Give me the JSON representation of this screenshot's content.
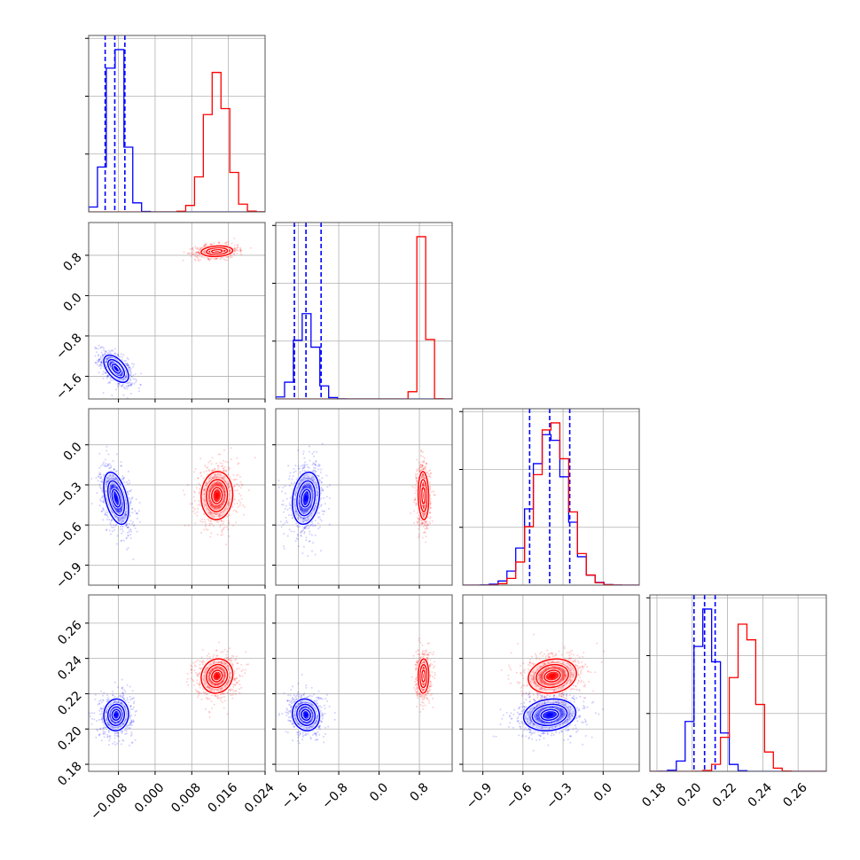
{
  "chart_data": {
    "type": "scatter",
    "subtype": "corner-plot",
    "grid": true,
    "colors": {
      "series_a": "#0000ff",
      "series_b": "#ff0000"
    },
    "parameters": [
      {
        "range": [
          -0.0145,
          0.024
        ],
        "ticks": [
          -0.008,
          0.0,
          0.008,
          0.016,
          0.024
        ],
        "tick_labels": [
          "−0.008",
          "0.000",
          "0.008",
          "0.016",
          "0.024"
        ]
      },
      {
        "range": [
          -2.05,
          1.45
        ],
        "ticks": [
          -1.6,
          -0.8,
          0.0,
          0.8
        ],
        "tick_labels": [
          "−1.6",
          "−0.8",
          "0.0",
          "0.8"
        ]
      },
      {
        "range": [
          -1.05,
          0.27
        ],
        "ticks": [
          -0.9,
          -0.6,
          -0.3,
          0.0
        ],
        "tick_labels": [
          "−0.9",
          "−0.6",
          "−0.3",
          "0.0"
        ]
      },
      {
        "range": [
          0.176,
          0.276
        ],
        "ticks": [
          0.18,
          0.2,
          0.22,
          0.24,
          0.26
        ],
        "tick_labels": [
          "0.18",
          "0.20",
          "0.22",
          "0.24",
          "0.26"
        ]
      }
    ],
    "series": [
      {
        "color": "#0000ff",
        "mean": [
          -0.0085,
          -1.45,
          -0.4,
          0.208
        ],
        "sd": [
          0.0018,
          0.18,
          0.13,
          0.006
        ],
        "correlation": [
          [
            1,
            -0.55,
            -0.45,
            0.05
          ],
          [
            -0.55,
            1,
            0.2,
            -0.1
          ],
          [
            -0.45,
            0.2,
            1,
            0.15
          ],
          [
            0.05,
            -0.1,
            0.15,
            1
          ]
        ],
        "quantiles_16_50_84": [
          [
            -0.0109,
            -0.0088,
            -0.0066
          ],
          [
            -1.68,
            -1.45,
            -1.15
          ],
          [
            -0.55,
            -0.4,
            -0.25
          ],
          [
            0.201,
            0.207,
            0.213
          ]
        ]
      },
      {
        "color": "#ff0000",
        "mean": [
          0.0135,
          0.88,
          -0.38,
          0.23
        ],
        "sd": [
          0.0023,
          0.07,
          0.12,
          0.0065
        ],
        "correlation": [
          [
            1,
            0.15,
            0.05,
            0.1
          ],
          [
            0.15,
            1,
            -0.1,
            0.05
          ],
          [
            0.05,
            -0.1,
            1,
            0.15
          ],
          [
            0.1,
            0.05,
            0.15,
            1
          ]
        ],
        "quantiles_16_50_84": []
      }
    ]
  }
}
